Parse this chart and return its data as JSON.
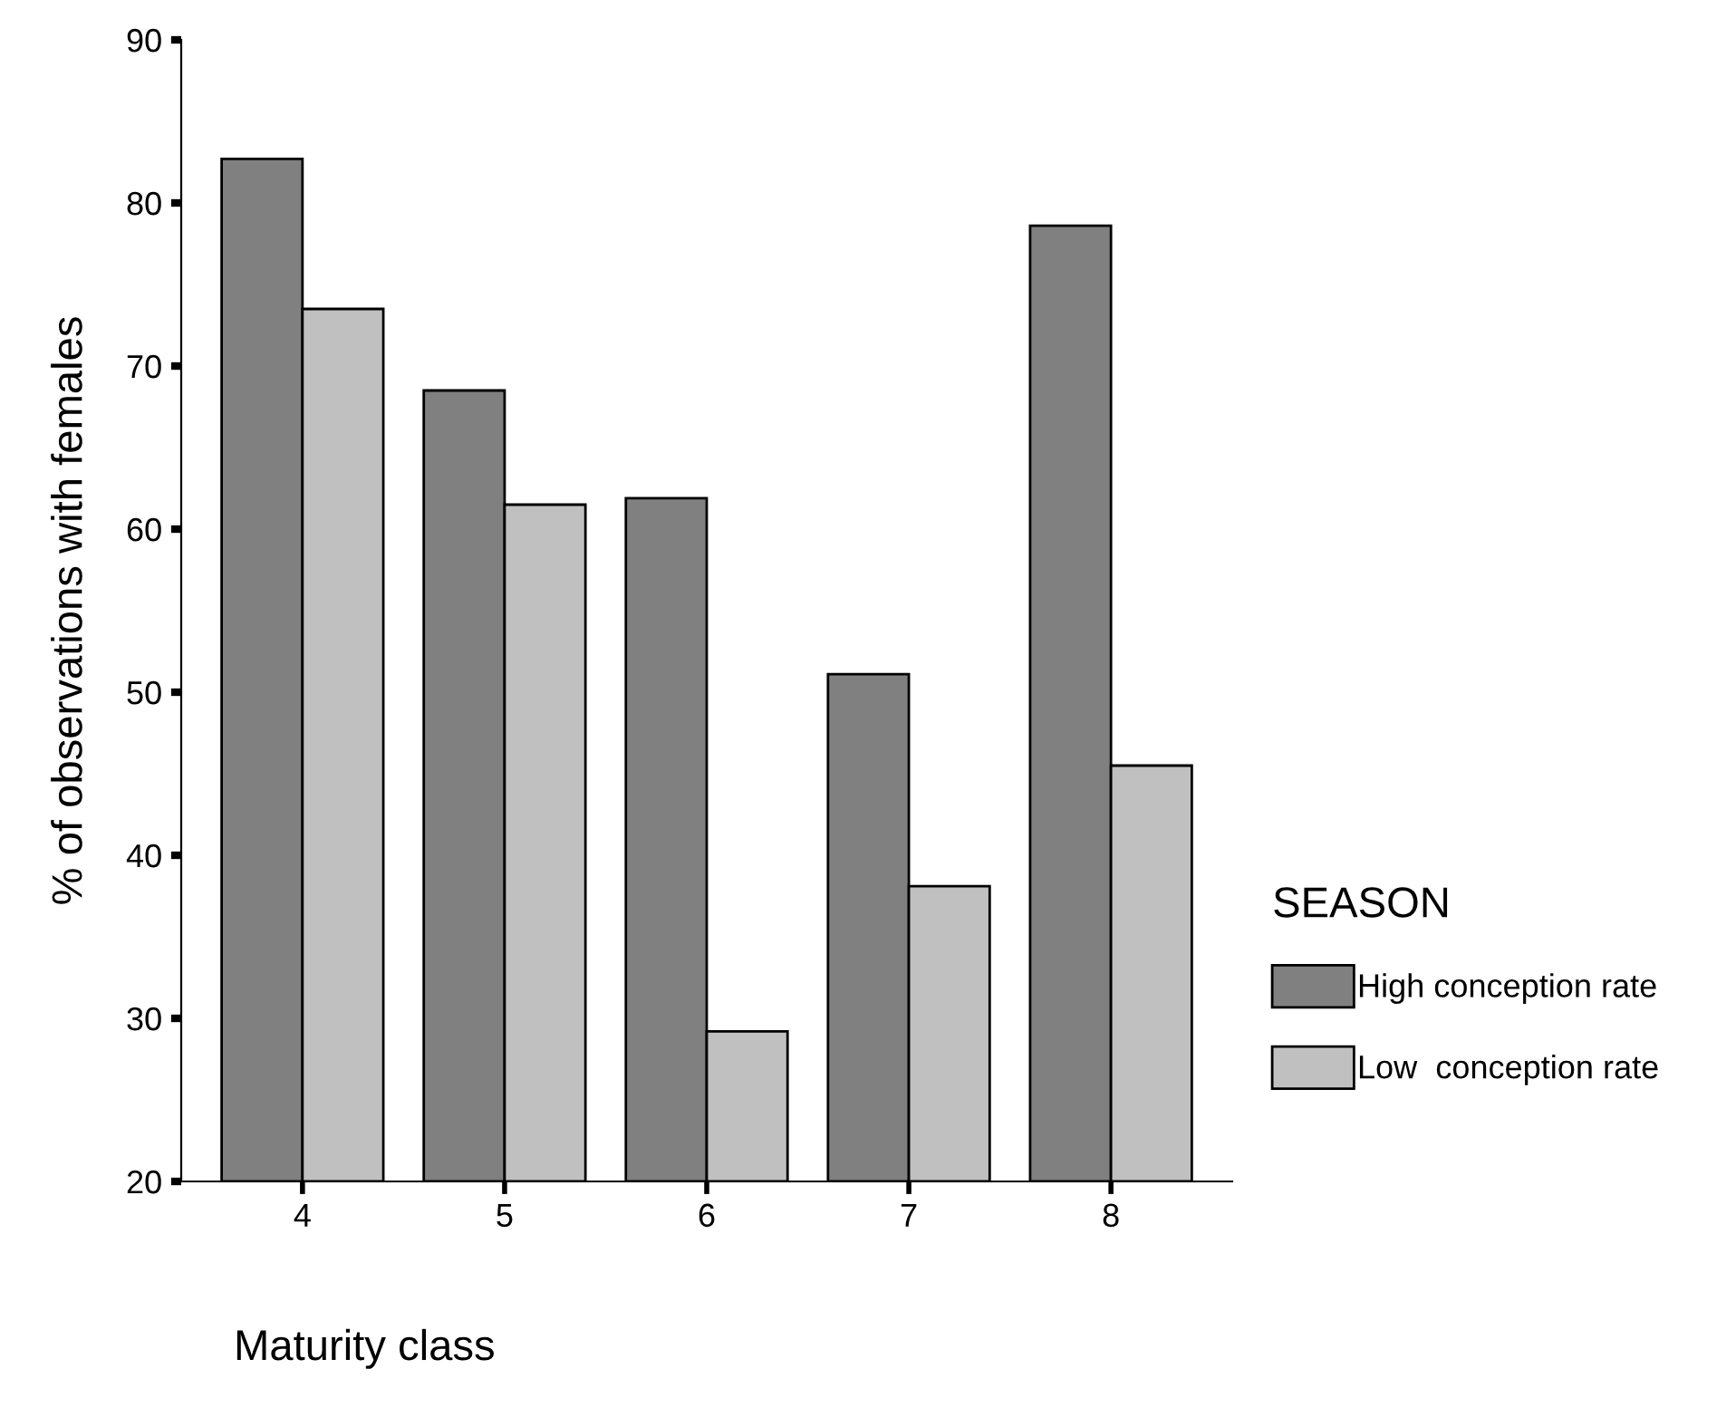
{
  "chart_data": {
    "type": "bar",
    "xlabel": "Maturity class",
    "ylabel": "% of observations with females",
    "legend_title": "SEASON",
    "categories": [
      "4",
      "5",
      "6",
      "7",
      "8"
    ],
    "series": [
      {
        "name": "High conception rate",
        "color": "#808080",
        "values": [
          82.7,
          68.5,
          61.9,
          51.1,
          78.6
        ]
      },
      {
        "name": "Low  conception rate",
        "color": "#c0c0c0",
        "values": [
          73.5,
          61.5,
          29.2,
          38.1,
          45.5
        ]
      }
    ],
    "ylim": [
      20,
      90
    ],
    "yticks": [
      20,
      30,
      40,
      50,
      60,
      70,
      80,
      90
    ],
    "grid": false,
    "legend": "right"
  }
}
